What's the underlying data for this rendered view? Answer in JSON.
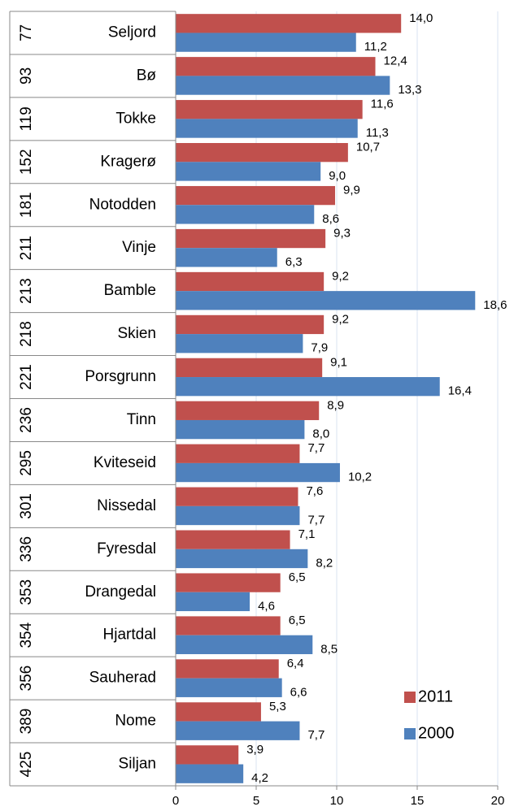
{
  "chart_data": {
    "type": "hbar",
    "categories": [
      "Seljord",
      "Bø",
      "Tokke",
      "Kragerø",
      "Notodden",
      "Vinje",
      "Bamble",
      "Skien",
      "Porsgrunn",
      "Tinn",
      "Kviteseid",
      "Nissedal",
      "Fyresdal",
      "Drangedal",
      "Hjartdal",
      "Sauherad",
      "Nome",
      "Siljan"
    ],
    "ranks": [
      "77",
      "93",
      "119",
      "152",
      "181",
      "211",
      "213",
      "218",
      "221",
      "236",
      "295",
      "301",
      "336",
      "353",
      "354",
      "356",
      "389",
      "425"
    ],
    "series": [
      {
        "name": "2011",
        "color": "#c0504d",
        "values": [
          14.0,
          12.4,
          11.6,
          10.7,
          9.9,
          9.3,
          9.2,
          9.2,
          9.1,
          8.9,
          7.7,
          7.6,
          7.1,
          6.5,
          6.5,
          6.4,
          5.3,
          3.9
        ],
        "value_labels": [
          "14,0",
          "12,4",
          "11,6",
          "10,7",
          "9,9",
          "9,3",
          "9,2",
          "9,2",
          "9,1",
          "8,9",
          "7,7",
          "7,6",
          "7,1",
          "6,5",
          "6,5",
          "6,4",
          "5,3",
          "3,9"
        ]
      },
      {
        "name": "2000",
        "color": "#4f81bd",
        "values": [
          11.2,
          13.3,
          11.3,
          9.0,
          8.6,
          6.3,
          18.6,
          7.9,
          16.4,
          8.0,
          10.2,
          7.7,
          8.2,
          4.6,
          8.5,
          6.6,
          7.7,
          4.2
        ],
        "value_labels": [
          "11,2",
          "13,3",
          "11,3",
          "9,0",
          "8,6",
          "6,3",
          "18,6",
          "7,9",
          "16,4",
          "8,0",
          "10,2",
          "7,7",
          "8,2",
          "4,6",
          "8,5",
          "6,6",
          "7,7",
          "4,2"
        ]
      }
    ],
    "xlim": [
      0,
      20
    ],
    "xticks": [
      0,
      5,
      10,
      15,
      20
    ],
    "grid": true,
    "legend": "lower right"
  }
}
